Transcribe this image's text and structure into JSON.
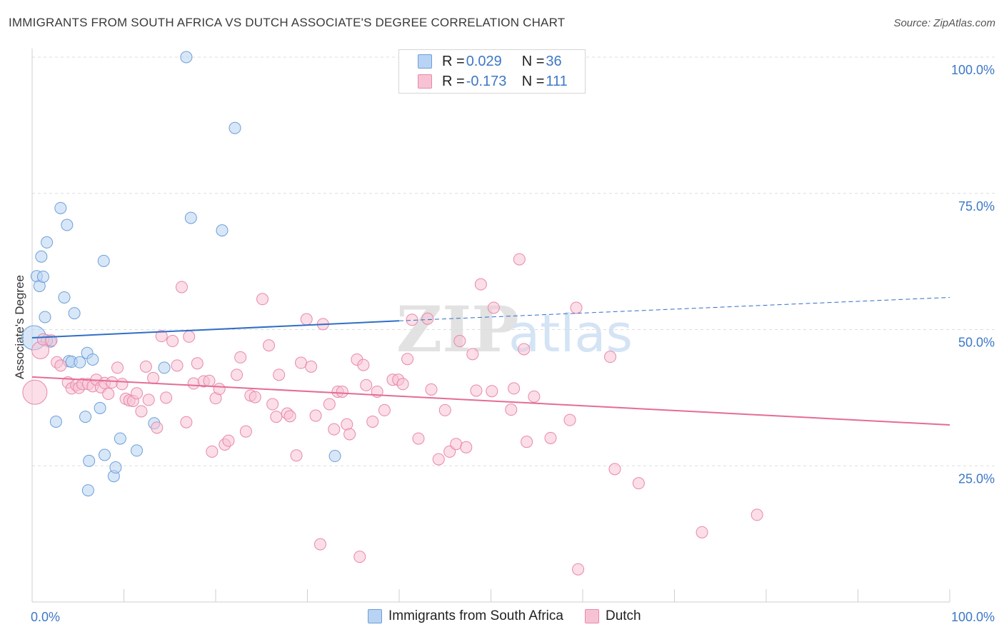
{
  "header": {
    "title": "IMMIGRANTS FROM SOUTH AFRICA VS DUTCH ASSOCIATE'S DEGREE CORRELATION CHART",
    "source": "Source: ZipAtlas.com"
  },
  "colors": {
    "blue_fill": "#b8d3f3",
    "blue_stroke": "#6d9fd8",
    "blue_line": "#2f6fc8",
    "pink_fill": "#f7c3d4",
    "pink_stroke": "#e888a9",
    "pink_line": "#e56c96",
    "tick_label": "#3d78c6",
    "grid": "#dddddd"
  },
  "legend_top": {
    "rows": [
      {
        "r_label": "R = ",
        "r_value": "0.029",
        "n_label": "N = ",
        "n_value": "36",
        "color": "blue"
      },
      {
        "r_label": "R = ",
        "r_value": "-0.173",
        "n_label": "N = ",
        "n_value": "111",
        "color": "pink"
      }
    ]
  },
  "legend_bottom": [
    "Immigrants from South Africa",
    "Dutch"
  ],
  "watermark": {
    "part1": "ZIP",
    "part2": "atlas"
  },
  "chart_data": {
    "type": "scatter",
    "title": "IMMIGRANTS FROM SOUTH AFRICA VS DUTCH ASSOCIATE'S DEGREE CORRELATION CHART",
    "ylabel": "Associate's Degree",
    "xlim": [
      0,
      100
    ],
    "ylim": [
      0,
      100
    ],
    "x_tick_labels": [
      "0.0%",
      "100.0%"
    ],
    "y_tick_labels": [
      "25.0%",
      "50.0%",
      "75.0%",
      "100.0%"
    ],
    "y_ticks": [
      25,
      50,
      75,
      100
    ],
    "grid": true,
    "legend_placement": "top-center",
    "series": [
      {
        "name": "Immigrants from South Africa",
        "color": "blue",
        "trend": {
          "x": [
            0,
            40
          ],
          "y": [
            48.5,
            51.6
          ],
          "dashed_to": [
            100,
            55.9
          ]
        },
        "points": [
          [
            0.2,
            48.5,
            3
          ],
          [
            0.5,
            59.8,
            1
          ],
          [
            0.8,
            58.0,
            1
          ],
          [
            1.0,
            63.4,
            1
          ],
          [
            1.2,
            59.7,
            1
          ],
          [
            1.4,
            52.3,
            1
          ],
          [
            1.6,
            66.0,
            1
          ],
          [
            2.0,
            47.8,
            1
          ],
          [
            2.6,
            33.1,
            1
          ],
          [
            3.1,
            72.3,
            1
          ],
          [
            3.5,
            55.9,
            1
          ],
          [
            3.8,
            69.2,
            1
          ],
          [
            4.0,
            44.2,
            1
          ],
          [
            4.3,
            44.1,
            1
          ],
          [
            4.6,
            53.0,
            1
          ],
          [
            5.2,
            44.0,
            1
          ],
          [
            5.8,
            34.0,
            1
          ],
          [
            6.0,
            45.7,
            1
          ],
          [
            6.2,
            25.9,
            1
          ],
          [
            6.1,
            20.5,
            1
          ],
          [
            6.6,
            44.5,
            1
          ],
          [
            7.4,
            35.6,
            1
          ],
          [
            7.8,
            62.6,
            1
          ],
          [
            7.9,
            27.0,
            1
          ],
          [
            8.9,
            23.1,
            1
          ],
          [
            9.1,
            24.7,
            1
          ],
          [
            9.6,
            30.0,
            1
          ],
          [
            11.4,
            27.8,
            1
          ],
          [
            13.3,
            32.8,
            1
          ],
          [
            14.4,
            43.0,
            1
          ],
          [
            16.8,
            100.0,
            1
          ],
          [
            17.3,
            70.5,
            1
          ],
          [
            22.1,
            87.0,
            1
          ],
          [
            20.7,
            68.2,
            1
          ],
          [
            33.0,
            26.8,
            1
          ],
          [
            1.6,
            48.0,
            1
          ]
        ]
      },
      {
        "name": "Dutch",
        "color": "pink",
        "trend": {
          "x": [
            0,
            100
          ],
          "y": [
            41.3,
            32.5
          ]
        },
        "points": [
          [
            0.3,
            38.5,
            3
          ],
          [
            0.9,
            46.2,
            2
          ],
          [
            1.2,
            48.2,
            1
          ],
          [
            2.1,
            48.0,
            1
          ],
          [
            2.7,
            44.0,
            1
          ],
          [
            3.1,
            43.4,
            1
          ],
          [
            3.9,
            40.3,
            1
          ],
          [
            4.3,
            39.2,
            1
          ],
          [
            4.8,
            39.8,
            1
          ],
          [
            5.1,
            39.3,
            1
          ],
          [
            5.5,
            40.0,
            1
          ],
          [
            6.1,
            40.0,
            1
          ],
          [
            6.6,
            39.6,
            1
          ],
          [
            7.0,
            40.8,
            1
          ],
          [
            7.5,
            39.4,
            1
          ],
          [
            7.9,
            40.2,
            1
          ],
          [
            8.3,
            38.2,
            1
          ],
          [
            8.7,
            40.3,
            1
          ],
          [
            9.3,
            43.0,
            1
          ],
          [
            9.8,
            40.0,
            1
          ],
          [
            10.2,
            37.3,
            1
          ],
          [
            10.6,
            37.0,
            1
          ],
          [
            11.0,
            36.9,
            1
          ],
          [
            11.4,
            38.3,
            1
          ],
          [
            11.9,
            35.0,
            1
          ],
          [
            12.4,
            43.2,
            1
          ],
          [
            12.7,
            37.1,
            1
          ],
          [
            13.2,
            41.1,
            1
          ],
          [
            13.6,
            32.0,
            1
          ],
          [
            14.1,
            48.8,
            1
          ],
          [
            14.6,
            37.5,
            1
          ],
          [
            15.3,
            47.9,
            1
          ],
          [
            15.8,
            43.4,
            1
          ],
          [
            16.3,
            57.8,
            1
          ],
          [
            16.8,
            33.0,
            1
          ],
          [
            17.1,
            48.7,
            1
          ],
          [
            17.6,
            40.1,
            1
          ],
          [
            18.0,
            43.8,
            1
          ],
          [
            18.7,
            40.5,
            1
          ],
          [
            19.3,
            40.6,
            1
          ],
          [
            19.6,
            27.6,
            1
          ],
          [
            20.0,
            37.4,
            1
          ],
          [
            20.4,
            39.1,
            1
          ],
          [
            21.0,
            28.9,
            1
          ],
          [
            21.4,
            29.6,
            1
          ],
          [
            22.3,
            41.7,
            1
          ],
          [
            22.7,
            44.9,
            1
          ],
          [
            23.3,
            31.3,
            1
          ],
          [
            23.8,
            37.9,
            1
          ],
          [
            24.3,
            37.6,
            1
          ],
          [
            25.1,
            55.6,
            1
          ],
          [
            25.8,
            47.1,
            1
          ],
          [
            26.2,
            36.3,
            1
          ],
          [
            26.6,
            34.0,
            1
          ],
          [
            26.9,
            41.7,
            1
          ],
          [
            27.8,
            34.6,
            1
          ],
          [
            28.1,
            34.1,
            1
          ],
          [
            28.8,
            26.9,
            1
          ],
          [
            29.3,
            43.9,
            1
          ],
          [
            29.9,
            51.9,
            1
          ],
          [
            30.4,
            43.2,
            1
          ],
          [
            30.9,
            34.2,
            1
          ],
          [
            31.4,
            10.6,
            1
          ],
          [
            31.7,
            51.0,
            1
          ],
          [
            32.4,
            36.3,
            1
          ],
          [
            32.9,
            31.7,
            1
          ],
          [
            33.3,
            38.6,
            1
          ],
          [
            33.8,
            38.6,
            1
          ],
          [
            34.3,
            32.6,
            1
          ],
          [
            34.6,
            30.8,
            1
          ],
          [
            35.4,
            44.5,
            1
          ],
          [
            35.7,
            8.3,
            1
          ],
          [
            36.1,
            43.5,
            1
          ],
          [
            36.4,
            39.8,
            1
          ],
          [
            37.1,
            33.1,
            1
          ],
          [
            37.6,
            38.6,
            1
          ],
          [
            38.4,
            35.2,
            1
          ],
          [
            39.3,
            40.8,
            1
          ],
          [
            39.9,
            40.8,
            1
          ],
          [
            40.4,
            40.0,
            1
          ],
          [
            40.9,
            44.6,
            1
          ],
          [
            41.4,
            51.8,
            1
          ],
          [
            42.1,
            30.0,
            1
          ],
          [
            43.1,
            52.0,
            1
          ],
          [
            43.5,
            39.0,
            1
          ],
          [
            44.3,
            26.2,
            1
          ],
          [
            45.0,
            35.2,
            1
          ],
          [
            45.5,
            27.6,
            1
          ],
          [
            46.2,
            29.0,
            1
          ],
          [
            46.6,
            47.9,
            1
          ],
          [
            47.3,
            28.4,
            1
          ],
          [
            48.0,
            45.5,
            1
          ],
          [
            48.4,
            38.8,
            1
          ],
          [
            48.9,
            58.3,
            1
          ],
          [
            50.1,
            38.7,
            1
          ],
          [
            50.3,
            54.0,
            1
          ],
          [
            52.2,
            35.3,
            1
          ],
          [
            52.5,
            39.2,
            1
          ],
          [
            53.1,
            62.9,
            1
          ],
          [
            53.6,
            46.4,
            1
          ],
          [
            53.9,
            29.4,
            1
          ],
          [
            54.7,
            37.7,
            1
          ],
          [
            56.5,
            30.1,
            1
          ],
          [
            58.6,
            33.4,
            1
          ],
          [
            59.3,
            54.0,
            1
          ],
          [
            63.0,
            45.0,
            1
          ],
          [
            63.5,
            24.4,
            1
          ],
          [
            66.1,
            21.8,
            1
          ],
          [
            73.0,
            12.8,
            1
          ],
          [
            79.0,
            16.0,
            1
          ],
          [
            59.5,
            6.0,
            1
          ]
        ]
      }
    ],
    "annotations": []
  }
}
